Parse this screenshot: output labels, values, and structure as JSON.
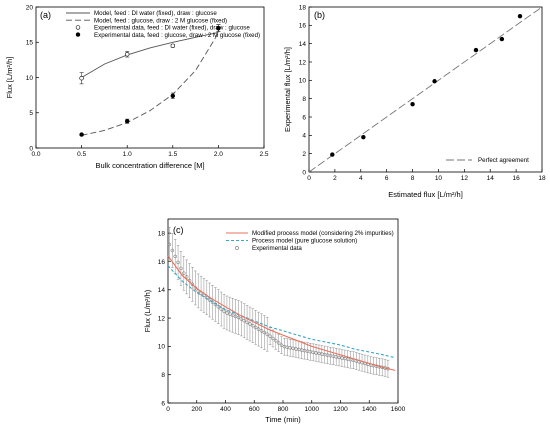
{
  "chart_data": [
    {
      "panel": "(a)",
      "type": "scatter",
      "xlabel": "Bulk concentration difference [M]",
      "ylabel": "Flux [L/m²/h]",
      "xlim": [
        0.0,
        2.5
      ],
      "ylim": [
        0,
        20
      ],
      "xticks": [
        "0.0",
        "0.5",
        "1.0",
        "1.5",
        "2.0",
        "2.5"
      ],
      "yticks": [
        "0",
        "5",
        "10",
        "15",
        "20"
      ],
      "legend_position": "top-left",
      "series": [
        {
          "name": "Model, feed : DI water (fixed), draw : glucose",
          "style": "solid-line",
          "x": [
            0.5,
            0.75,
            1.0,
            1.25,
            1.5,
            1.75,
            2.0
          ],
          "y": [
            10.0,
            11.9,
            13.2,
            14.2,
            15.0,
            15.7,
            16.4
          ]
        },
        {
          "name": "Model,  feed : glucose, draw : 2 M glucose (fixed)",
          "style": "dashed-line",
          "x": [
            0.5,
            0.75,
            1.0,
            1.25,
            1.5,
            1.75,
            2.0
          ],
          "y": [
            1.8,
            2.5,
            3.6,
            5.3,
            7.6,
            11.0,
            16.3
          ]
        },
        {
          "name": "Experimental data, feed : DI water (fixed), draw : glucose",
          "style": "open-circle",
          "x": [
            0.5,
            1.0,
            1.5,
            2.0
          ],
          "y": [
            9.9,
            13.3,
            14.5,
            17.0
          ],
          "yerr": [
            0.8,
            0.4,
            0.2,
            0.5
          ]
        },
        {
          "name": "Experimental data, feed : glucose, draw : 2 M glucose (fixed)",
          "style": "filled-circle",
          "x": [
            0.5,
            1.0,
            1.5,
            2.0
          ],
          "y": [
            1.9,
            3.8,
            7.4,
            17.0
          ],
          "yerr": [
            0.1,
            0.3,
            0.4,
            0.5
          ]
        }
      ]
    },
    {
      "panel": "(b)",
      "type": "scatter",
      "xlabel": "Estimated flux [L/m²/h]",
      "ylabel": "Experimental flux [L/m²/h]",
      "xlim": [
        0,
        18
      ],
      "ylim": [
        0,
        18
      ],
      "xticks": [
        "0",
        "2",
        "4",
        "6",
        "8",
        "10",
        "12",
        "14",
        "16",
        "18"
      ],
      "yticks": [
        "0",
        "2",
        "4",
        "6",
        "8",
        "10",
        "12",
        "14",
        "16",
        "18"
      ],
      "legend_position": "bottom-right",
      "line": {
        "name": "Perfect agreement",
        "x": [
          0,
          18
        ],
        "y": [
          0,
          18
        ]
      },
      "points": {
        "x": [
          1.8,
          4.2,
          8.0,
          9.7,
          12.9,
          14.9,
          16.3
        ],
        "y": [
          1.9,
          3.8,
          7.4,
          9.9,
          13.3,
          14.5,
          17.0
        ]
      }
    },
    {
      "panel": "(c)",
      "type": "line",
      "xlabel": "Time (min)",
      "ylabel": "Flux (L/m²/h)",
      "xlim": [
        0,
        1600
      ],
      "ylim": [
        6,
        19
      ],
      "xticks": [
        "0",
        "200",
        "400",
        "600",
        "800",
        "1000",
        "1200",
        "1400",
        "1600"
      ],
      "yticks": [
        "6",
        "8",
        "10",
        "12",
        "14",
        "16",
        "18"
      ],
      "legend_position": "top-right",
      "series": [
        {
          "name": "Modified process model (considering 2% impurities)",
          "color": "#e8705a",
          "x": [
            0,
            100,
            200,
            300,
            400,
            500,
            600,
            700,
            800,
            900,
            1000,
            1100,
            1200,
            1300,
            1400,
            1500,
            1580
          ],
          "y": [
            16.4,
            15.0,
            14.1,
            13.4,
            12.8,
            12.2,
            11.7,
            11.2,
            10.8,
            10.4,
            10.0,
            9.7,
            9.4,
            9.1,
            8.8,
            8.5,
            8.3
          ]
        },
        {
          "name": "Process model (pure glucose solution)",
          "color": "#3aa6c8",
          "x": [
            0,
            100,
            200,
            300,
            400,
            500,
            600,
            700,
            800,
            900,
            1000,
            1100,
            1200,
            1300,
            1400,
            1500,
            1580
          ],
          "y": [
            15.7,
            14.6,
            13.8,
            13.2,
            12.6,
            12.2,
            11.8,
            11.4,
            11.1,
            10.8,
            10.5,
            10.3,
            10.1,
            9.8,
            9.6,
            9.4,
            9.2
          ]
        },
        {
          "name": "Experimental data",
          "color": "#707070",
          "x": [
            10,
            100,
            200,
            300,
            400,
            500,
            600,
            700,
            800,
            900,
            1000,
            1100,
            1200,
            1300,
            1400,
            1500,
            1540
          ],
          "y": [
            17.2,
            15.3,
            14.0,
            13.2,
            12.4,
            12.0,
            11.4,
            10.8,
            10.0,
            9.8,
            9.6,
            9.4,
            9.2,
            9.0,
            8.7,
            8.5,
            8.4
          ]
        }
      ]
    }
  ]
}
